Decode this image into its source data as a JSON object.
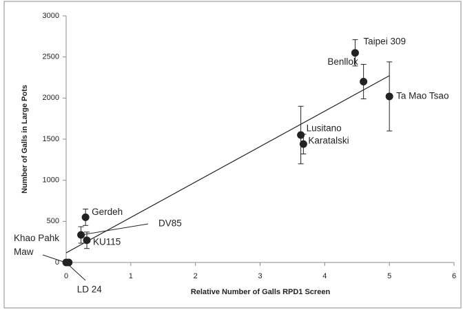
{
  "chart_data": {
    "type": "scatter",
    "x_label": "Relative Number of Galls RPD1 Screen",
    "y_label": "Number of Galls in Large Pots",
    "labels": [
      "Taipei 309",
      "Benllok",
      "Ta Mao Tsao",
      "Lusitano",
      "Karatalski",
      "Gerdeh",
      "DV85",
      "KU115",
      "Khao Pahk Maw",
      "LD 24"
    ],
    "x": [
      4.47,
      4.6,
      5.0,
      3.63,
      3.67,
      0.3,
      0.23,
      0.32,
      0.0,
      0.04
    ],
    "y": [
      2550,
      2200,
      2020,
      1550,
      1440,
      550,
      335,
      270,
      0,
      0
    ],
    "errors": [
      160,
      210,
      420,
      350,
      120,
      100,
      100,
      100,
      0,
      0
    ],
    "color": "#222222",
    "trendline": {
      "x": [
        0,
        5
      ],
      "y": [
        117,
        2272
      ]
    },
    "xlim": [
      0,
      6
    ],
    "xticks": [
      0,
      1,
      2,
      3,
      4,
      5,
      6
    ],
    "ylim": [
      0,
      3000
    ],
    "yticks": [
      0,
      500,
      1000,
      1500,
      2000,
      2500,
      3000
    ]
  }
}
